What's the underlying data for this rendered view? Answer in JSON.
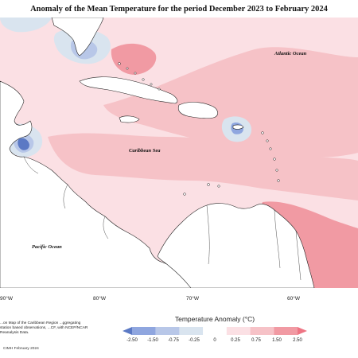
{
  "title": "Anomaly of the Mean Temperature for the period December 2023 to February 2024",
  "ocean_labels": {
    "atlantic": "Atlantic Ocean",
    "caribbean": "Caribbean Sea",
    "pacific": "Pacific Ocean"
  },
  "longitude_labels": [
    "90°W",
    "80°W",
    "70°W",
    "60°W"
  ],
  "legend": {
    "title": "Temperature Anomaly (°C)",
    "ticks": [
      "-2.50",
      "-1.50",
      "-0.75",
      "-0.25",
      "0",
      "0.25",
      "0.75",
      "1.50",
      "2.50"
    ],
    "colors": [
      "#5b79c4",
      "#8fa6df",
      "#b8c7e8",
      "#d9e4ef",
      "#ffffff",
      "#fbe0e4",
      "#f6c2c7",
      "#f19aa3",
      "#ee7584"
    ]
  },
  "credit_text": "...on Map of the Caribbean Region ...ggregating station based observations, ...CF, with NCEP/NCAR Reanalysis Data.",
  "credit_line": "CIMH February 2024",
  "colors": {
    "land": "#ffffff",
    "coast": "#222222",
    "warm_light": "#fbe0e4",
    "warm_mid": "#f6c2c7",
    "warm_strong": "#f19aa3",
    "cool_light": "#d9e4ef",
    "cool_mid": "#b8c7e8",
    "cool_strong": "#5b79c4"
  }
}
